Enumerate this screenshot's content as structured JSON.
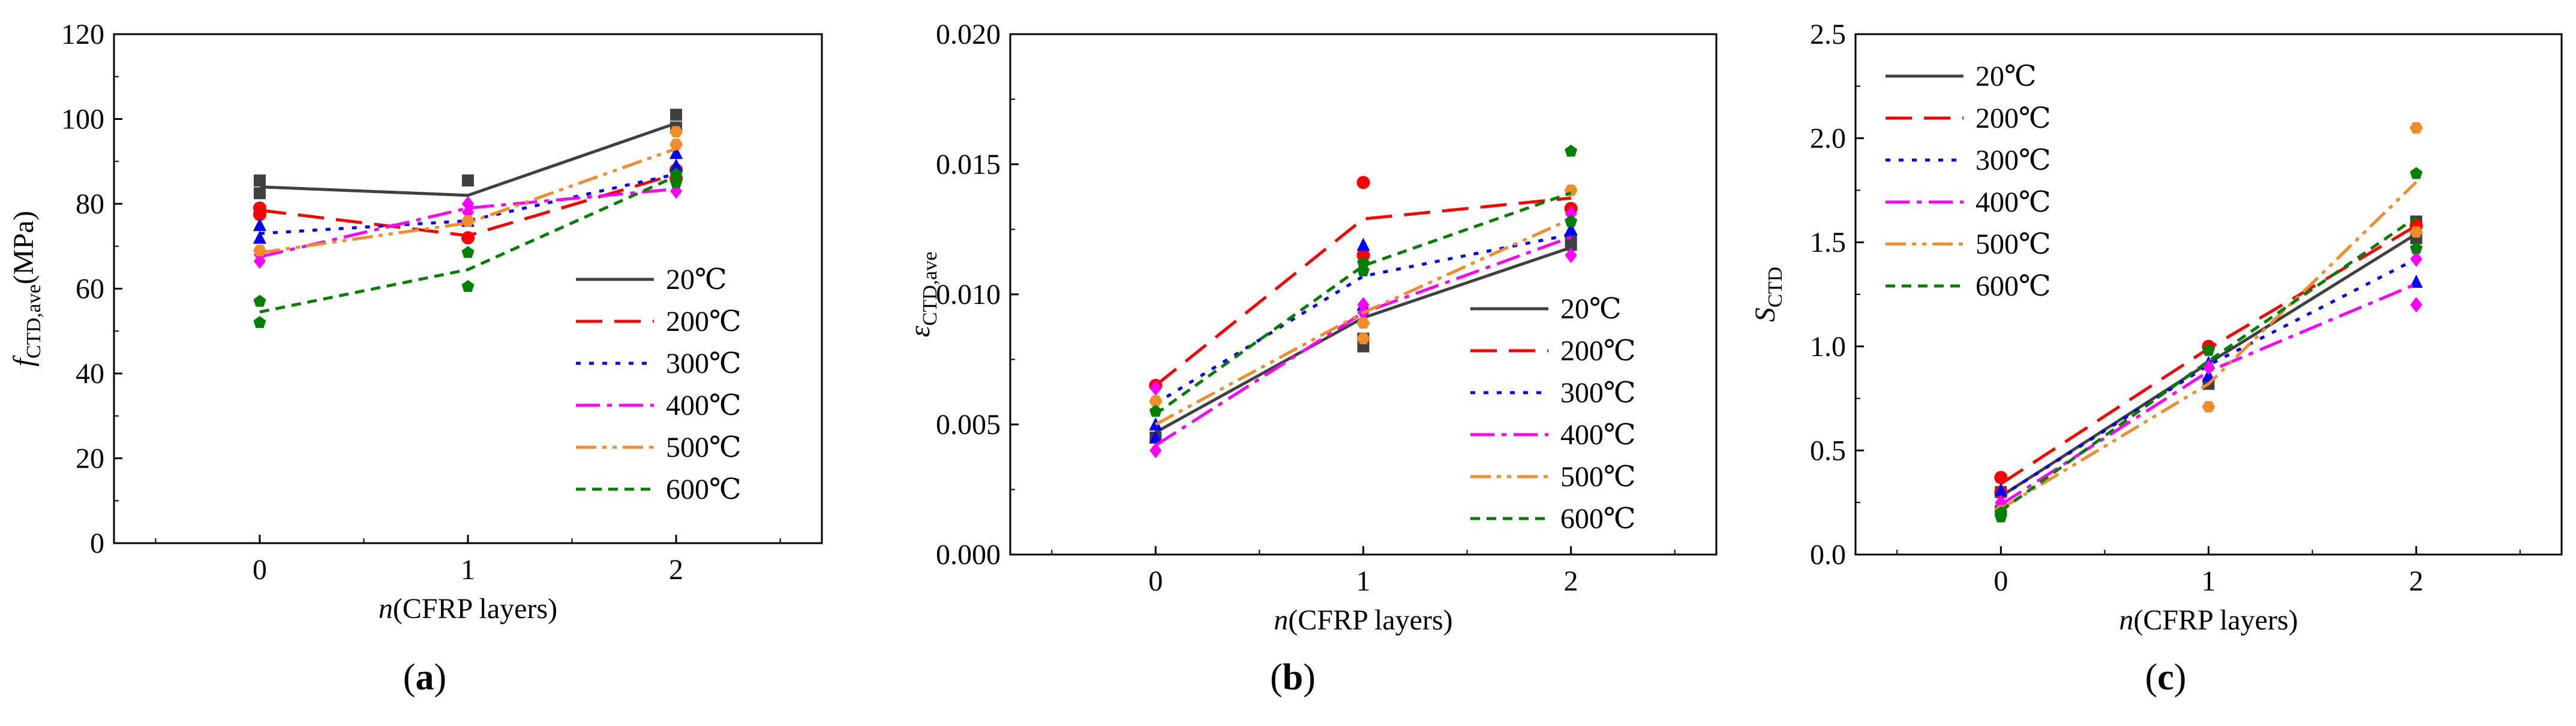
{
  "colors": {
    "20C": "#404040",
    "200C": "#ff0000",
    "300C": "#0000ff",
    "400C": "#ff00ff",
    "500C": "#f28c28",
    "600C": "#008000"
  },
  "chart_data": [
    {
      "type": "line",
      "panel_label": "(a)",
      "ylabel_main": "f",
      "ylabel_sub": "CTD,ave",
      "ylabel_suffix": "(MPa)",
      "xlabel_main": "n",
      "xlabel_suffix": "(CFRP layers)",
      "x": [
        0,
        1,
        2
      ],
      "xticks": [
        "0",
        "1",
        "2"
      ],
      "xlim": [
        -0.7,
        2.7
      ],
      "ylim": [
        0,
        120
      ],
      "yticks": [
        "0",
        "20",
        "40",
        "60",
        "80",
        "100",
        "120"
      ],
      "legend_position": "lower-right",
      "series": [
        {
          "name": "20℃",
          "key": "20C",
          "dash": "",
          "marker": "square",
          "line": [
            84,
            82,
            99
          ],
          "points": [
            [
              0,
              85.5
            ],
            [
              0,
              82.5
            ],
            [
              1,
              85.5
            ],
            [
              2,
              101
            ],
            [
              2,
              98
            ]
          ]
        },
        {
          "name": "200℃",
          "key": "200C",
          "dash": "long",
          "marker": "circle",
          "line": [
            78.5,
            72.5,
            87
          ],
          "points": [
            [
              0,
              79
            ],
            [
              0,
              77.5
            ],
            [
              1,
              72
            ],
            [
              2,
              88
            ],
            [
              2,
              86
            ]
          ]
        },
        {
          "name": "300℃",
          "key": "300C",
          "dash": "dot",
          "marker": "triangle",
          "line": [
            73,
            76,
            87
          ],
          "points": [
            [
              0,
              75
            ],
            [
              0,
              72
            ],
            [
              1,
              76
            ],
            [
              2,
              92
            ],
            [
              2,
              89
            ]
          ]
        },
        {
          "name": "400℃",
          "key": "400C",
          "dash": "dashdot",
          "marker": "diamond",
          "line": [
            67.5,
            79,
            83.5
          ],
          "points": [
            [
              0,
              68
            ],
            [
              0,
              66.5
            ],
            [
              1,
              80
            ],
            [
              1,
              78
            ],
            [
              2,
              83
            ]
          ]
        },
        {
          "name": "500℃",
          "key": "500C",
          "dash": "dashdotdot",
          "marker": "hexagon",
          "line": [
            68.5,
            75.5,
            93
          ],
          "points": [
            [
              0,
              69
            ],
            [
              1,
              76
            ],
            [
              2,
              97
            ],
            [
              2,
              94
            ]
          ]
        },
        {
          "name": "600℃",
          "key": "600C",
          "dash": "short",
          "marker": "pentagon",
          "line": [
            54.5,
            64.5,
            86.5
          ],
          "points": [
            [
              0,
              57
            ],
            [
              0,
              52
            ],
            [
              1,
              68.5
            ],
            [
              1,
              60.5
            ],
            [
              2,
              87
            ],
            [
              2,
              85
            ]
          ]
        }
      ]
    },
    {
      "type": "line",
      "panel_label": "(b)",
      "ylabel_main": "ε",
      "ylabel_sub": "CTD,ave",
      "ylabel_suffix": "",
      "xlabel_main": "n",
      "xlabel_suffix": "(CFRP layers)",
      "x": [
        0,
        1,
        2
      ],
      "xticks": [
        "0",
        "1",
        "2"
      ],
      "xlim": [
        -0.7,
        2.7
      ],
      "ylim": [
        0,
        0.02
      ],
      "yticks": [
        "0.000",
        "0.005",
        "0.010",
        "0.015",
        "0.020"
      ],
      "legend_position": "lower-right",
      "series": [
        {
          "name": "20℃",
          "key": "20C",
          "dash": "",
          "marker": "square",
          "line": [
            0.0047,
            0.0091,
            0.0118
          ],
          "points": [
            [
              0,
              0.0045
            ],
            [
              1,
              0.008
            ],
            [
              1,
              0.0083
            ],
            [
              2,
              0.0121
            ],
            [
              2,
              0.0119
            ]
          ]
        },
        {
          "name": "200℃",
          "key": "200C",
          "dash": "long",
          "marker": "circle",
          "line": [
            0.0065,
            0.0129,
            0.0137
          ],
          "points": [
            [
              0,
              0.0065
            ],
            [
              1,
              0.0143
            ],
            [
              1,
              0.0115
            ],
            [
              2,
              0.0133
            ]
          ]
        },
        {
          "name": "300℃",
          "key": "300C",
          "dash": "dot",
          "marker": "triangle",
          "line": [
            0.0058,
            0.0107,
            0.0123
          ],
          "points": [
            [
              0,
              0.005
            ],
            [
              0,
              0.0045
            ],
            [
              1,
              0.0119
            ],
            [
              1,
              0.0096
            ],
            [
              2,
              0.0125
            ]
          ]
        },
        {
          "name": "400℃",
          "key": "400C",
          "dash": "dashdot",
          "marker": "diamond",
          "line": [
            0.0042,
            0.0093,
            0.0122
          ],
          "points": [
            [
              0,
              0.004
            ],
            [
              0,
              0.0064
            ],
            [
              1,
              0.0096
            ],
            [
              1,
              0.0093
            ],
            [
              2,
              0.0131
            ],
            [
              2,
              0.0115
            ]
          ]
        },
        {
          "name": "500℃",
          "key": "500C",
          "dash": "dashdotdot",
          "marker": "hexagon",
          "line": [
            0.005,
            0.0093,
            0.0129
          ],
          "points": [
            [
              0,
              0.0059
            ],
            [
              1,
              0.0089
            ],
            [
              1,
              0.0083
            ],
            [
              2,
              0.014
            ]
          ]
        },
        {
          "name": "600℃",
          "key": "600C",
          "dash": "short",
          "marker": "pentagon",
          "line": [
            0.0054,
            0.0111,
            0.0139
          ],
          "points": [
            [
              0,
              0.0055
            ],
            [
              1,
              0.0109
            ],
            [
              1,
              0.0112
            ],
            [
              2,
              0.0155
            ],
            [
              2,
              0.0128
            ]
          ]
        }
      ]
    },
    {
      "type": "line",
      "panel_label": "(c)",
      "ylabel_main": "S",
      "ylabel_sub": "CTD",
      "ylabel_suffix": "",
      "xlabel_main": "n",
      "xlabel_suffix": "(CFRP layers)",
      "x": [
        0,
        1,
        2
      ],
      "xticks": [
        "0",
        "1",
        "2"
      ],
      "xlim": [
        -0.7,
        2.7
      ],
      "ylim": [
        0,
        2.5
      ],
      "yticks": [
        "0.0",
        "0.5",
        "1.0",
        "1.5",
        "2.0",
        "2.5"
      ],
      "legend_position": "upper-left",
      "series": [
        {
          "name": "20℃",
          "key": "20C",
          "dash": "",
          "marker": "square",
          "line": [
            0.28,
            0.92,
            1.54
          ],
          "points": [
            [
              0,
              0.3
            ],
            [
              0,
              0.21
            ],
            [
              1,
              0.82
            ],
            [
              2,
              1.6
            ],
            [
              2,
              1.52
            ]
          ]
        },
        {
          "name": "200℃",
          "key": "200C",
          "dash": "long",
          "marker": "circle",
          "line": [
            0.34,
            0.99,
            1.58
          ],
          "points": [
            [
              0,
              0.37
            ],
            [
              0,
              0.3
            ],
            [
              1,
              1.0
            ],
            [
              2,
              1.58
            ]
          ]
        },
        {
          "name": "300℃",
          "key": "300C",
          "dash": "dot",
          "marker": "triangle",
          "line": [
            0.28,
            0.91,
            1.42
          ],
          "points": [
            [
              0,
              0.31
            ],
            [
              1,
              0.92
            ],
            [
              1,
              0.86
            ],
            [
              2,
              1.31
            ]
          ]
        },
        {
          "name": "400℃",
          "key": "400C",
          "dash": "dashdot",
          "marker": "diamond",
          "line": [
            0.24,
            0.88,
            1.3
          ],
          "points": [
            [
              0,
              0.25
            ],
            [
              1,
              0.9
            ],
            [
              2,
              1.42
            ],
            [
              2,
              1.2
            ]
          ]
        },
        {
          "name": "500℃",
          "key": "500C",
          "dash": "dashdotdot",
          "marker": "hexagon",
          "line": [
            0.22,
            0.82,
            1.79
          ],
          "points": [
            [
              0,
              0.21
            ],
            [
              1,
              0.71
            ],
            [
              2,
              2.05
            ],
            [
              2,
              1.55
            ]
          ]
        },
        {
          "name": "600℃",
          "key": "600C",
          "dash": "short",
          "marker": "pentagon",
          "line": [
            0.21,
            0.93,
            1.62
          ],
          "points": [
            [
              0,
              0.18
            ],
            [
              0,
              0.2
            ],
            [
              1,
              0.98
            ],
            [
              2,
              1.83
            ],
            [
              2,
              1.47
            ]
          ]
        }
      ]
    }
  ]
}
